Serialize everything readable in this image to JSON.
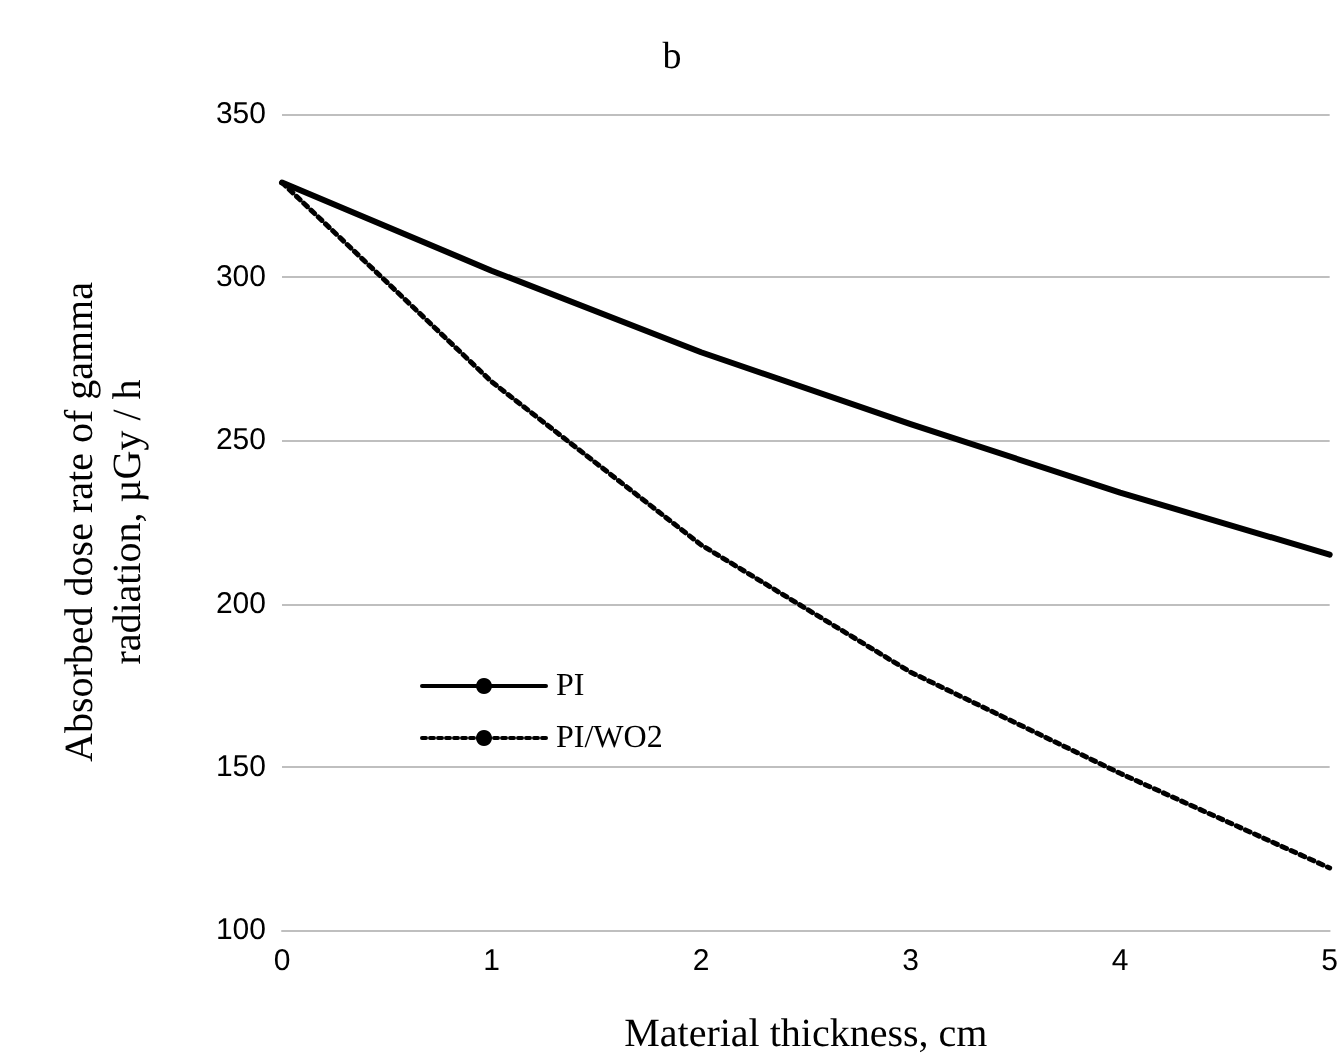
{
  "chart_data": {
    "type": "line",
    "title": "b",
    "xlabel": "Material thickness, cm",
    "ylabel": "Absorbed dose rate of gamma radiation, µGy / h",
    "x": [
      0,
      1,
      2,
      3,
      4,
      5
    ],
    "series": [
      {
        "name": "PI",
        "color": "#000000",
        "line_style": "solid",
        "values": [
          329,
          302,
          277,
          255,
          234,
          215
        ]
      },
      {
        "name": "PI/WO2",
        "color": "#000000",
        "line_style": "dotted",
        "values": [
          329,
          268,
          218,
          179,
          148,
          119
        ]
      }
    ],
    "xlim": [
      0,
      5
    ],
    "xticks": [
      0,
      1,
      2,
      3,
      4,
      5
    ],
    "ylim": [
      100,
      350
    ],
    "yticks": [
      100,
      150,
      200,
      250,
      300,
      350
    ],
    "grid": "y",
    "legend": "bottom left",
    "marker": "none"
  }
}
